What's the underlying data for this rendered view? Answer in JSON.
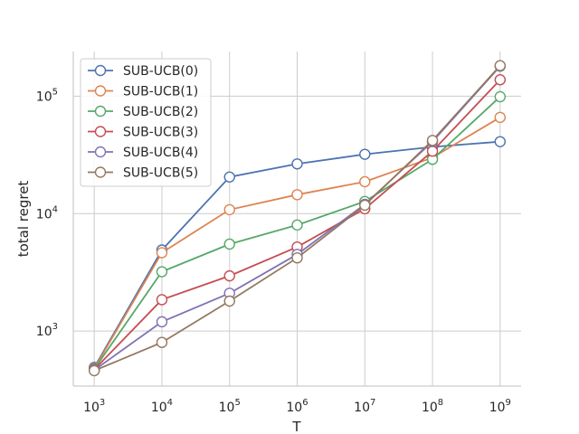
{
  "chart_data": {
    "type": "line",
    "xlabel": "T",
    "ylabel": "total regret",
    "x_scale": "log",
    "y_scale": "log",
    "x": [
      1000,
      10000,
      100000,
      1000000,
      10000000,
      100000000,
      1000000000
    ],
    "x_tick_labels": [
      {
        "base": "10",
        "exp": "3"
      },
      {
        "base": "10",
        "exp": "4"
      },
      {
        "base": "10",
        "exp": "5"
      },
      {
        "base": "10",
        "exp": "6"
      },
      {
        "base": "10",
        "exp": "7"
      },
      {
        "base": "10",
        "exp": "8"
      },
      {
        "base": "10",
        "exp": "9"
      }
    ],
    "y_ticks": [
      1000,
      10000,
      100000
    ],
    "y_tick_labels": [
      {
        "base": "10",
        "exp": "3"
      },
      {
        "base": "10",
        "exp": "4"
      },
      {
        "base": "10",
        "exp": "5"
      }
    ],
    "ylim": [
      340,
      240000
    ],
    "grid": true,
    "legend_position": "top-left",
    "series": [
      {
        "name": "SUB-UCB(0)",
        "color": "#4c72b0",
        "values": [
          490,
          4900,
          20500,
          26500,
          32000,
          37000,
          41000
        ]
      },
      {
        "name": "SUB-UCB(1)",
        "color": "#dd8452",
        "values": [
          480,
          4650,
          10800,
          14500,
          18700,
          30000,
          66000
        ]
      },
      {
        "name": "SUB-UCB(2)",
        "color": "#55a868",
        "values": [
          475,
          3200,
          5500,
          8000,
          12700,
          29000,
          99000
        ]
      },
      {
        "name": "SUB-UCB(3)",
        "color": "#c44e52",
        "values": [
          470,
          1850,
          2950,
          5200,
          11000,
          34000,
          138000
        ]
      },
      {
        "name": "SUB-UCB(4)",
        "color": "#8172b3",
        "values": [
          465,
          1200,
          2100,
          4500,
          12000,
          41000,
          180000
        ]
      },
      {
        "name": "SUB-UCB(5)",
        "color": "#937860",
        "values": [
          460,
          800,
          1800,
          4200,
          11800,
          42000,
          182000
        ]
      }
    ]
  }
}
